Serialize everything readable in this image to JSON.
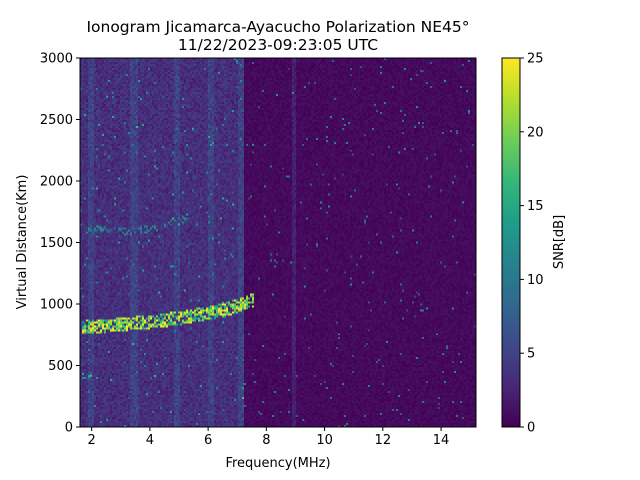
{
  "chart_data": {
    "type": "heatmap",
    "title": "Ionogram Jicamarca-Ayacucho Polarization NE45°",
    "subtitle": "11/22/2023-09:23:05 UTC",
    "xlabel": "Frequency(MHz)",
    "ylabel": "Virtual Distance(Km)",
    "xlim": [
      1.6,
      15.2
    ],
    "ylim": [
      0,
      3000
    ],
    "xticks": [
      2,
      4,
      6,
      8,
      10,
      12,
      14
    ],
    "yticks": [
      0,
      500,
      1000,
      1500,
      2000,
      2500,
      3000
    ],
    "colorbar": {
      "label": "SNR[dB]",
      "range": [
        0,
        25
      ],
      "ticks": [
        0,
        5,
        10,
        15,
        20,
        25
      ],
      "colormap": "viridis"
    },
    "features": [
      {
        "label": "",
        "description_free": true,
        "type": "trace",
        "points": [
          [
            1.7,
            810
          ],
          [
            2.5,
            825
          ],
          [
            3.5,
            845
          ],
          [
            4.5,
            870
          ],
          [
            5.5,
            905
          ],
          [
            6.5,
            950
          ],
          [
            7.2,
            1000
          ],
          [
            7.6,
            1040
          ]
        ],
        "snr": 25
      },
      {
        "label": "",
        "type": "trace",
        "points": [
          [
            1.8,
            1610
          ],
          [
            2.5,
            1600
          ],
          [
            3.5,
            1590
          ],
          [
            4.5,
            1640
          ],
          [
            5.3,
            1700
          ]
        ],
        "snr": 12
      },
      {
        "label": "",
        "type": "trace",
        "points": [
          [
            1.7,
            400
          ],
          [
            2.0,
            400
          ]
        ],
        "snr": 15
      }
    ],
    "elevated_noise_bands_mhz": [
      [
        1.6,
        7.2
      ]
    ],
    "background_snr": 1
  }
}
